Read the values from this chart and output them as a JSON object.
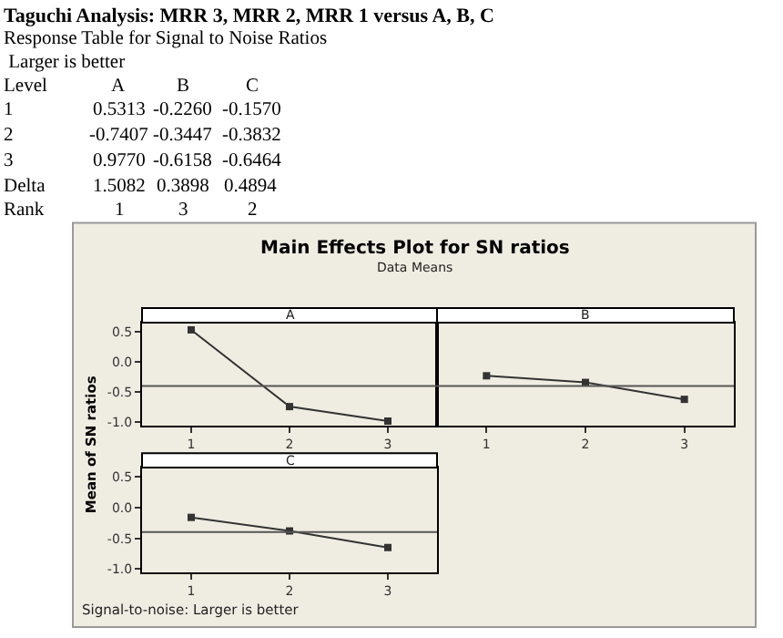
{
  "chart_data": [
    {
      "type": "other",
      "title": "Taguchi Analysis: MRR 3, MRR 2, MRR 1 versus A, B, C",
      "annotations": [
        "Response Table for Signal to Noise Ratios",
        " Larger is better",
        "Level",
        "A",
        "B",
        "C",
        "1",
        "0.5313",
        "-0.2260",
        "-0.1570",
        "2",
        "-0.7407",
        "-0.3447",
        "-0.3832",
        "3",
        "0.9770",
        "-0.6158",
        "-0.6464",
        "Delta",
        "1.5082",
        "0.3898",
        "0.4894",
        "Rank",
        "1",
        "3",
        "2"
      ]
    },
    {
      "type": "other",
      "title": "Main Effects Plot for SN ratios",
      "subtitle": "Data Means",
      "ylabel": "Mean of SN ratios",
      "annotations": [
        "Signal-to-noise: Larger is better"
      ]
    },
    {
      "type": "line",
      "title": "A",
      "x": [
        1,
        2,
        3
      ],
      "values": [
        0.53,
        -0.74,
        -0.98
      ],
      "color": "#333333",
      "marker": "square",
      "xlim": [
        0.5,
        3.5
      ],
      "ylim": [
        -1.06,
        0.65
      ],
      "xticks": [
        1,
        2,
        3
      ],
      "yticks": [
        {
          "value": 0.5,
          "label": "0.5"
        },
        {
          "value": 0,
          "label": "0.0"
        },
        {
          "value": -0.5,
          "label": "-0.5"
        },
        {
          "value": -1,
          "label": "-1.0"
        }
      ],
      "ref_lines": [
        {
          "axis": "y",
          "value": -0.4,
          "color": "#555555"
        }
      ]
    },
    {
      "type": "line",
      "title": "B",
      "x": [
        1,
        2,
        3
      ],
      "values": [
        -0.23,
        -0.34,
        -0.62
      ],
      "color": "#333333",
      "marker": "square",
      "xlim": [
        0.5,
        3.5
      ],
      "ylim": [
        -1.06,
        0.65
      ],
      "xticks": [
        1,
        2,
        3
      ],
      "ref_lines": [
        {
          "axis": "y",
          "value": -0.4,
          "color": "#555555"
        }
      ],
      "tick_labels": "x"
    },
    {
      "type": "line",
      "title": "C",
      "x": [
        1,
        2,
        3
      ],
      "values": [
        -0.16,
        -0.38,
        -0.65
      ],
      "color": "#333333",
      "marker": "square",
      "xlim": [
        0.5,
        3.5
      ],
      "ylim": [
        -1.06,
        0.65
      ],
      "xticks": [
        1,
        2,
        3
      ],
      "yticks": [
        {
          "value": 0.5,
          "label": "0.5"
        },
        {
          "value": 0,
          "label": "0.0"
        },
        {
          "value": -0.5,
          "label": "-0.5"
        },
        {
          "value": -1,
          "label": "-1.0"
        }
      ],
      "ref_lines": [
        {
          "axis": "y",
          "value": -0.4,
          "color": "#555555"
        }
      ]
    }
  ]
}
